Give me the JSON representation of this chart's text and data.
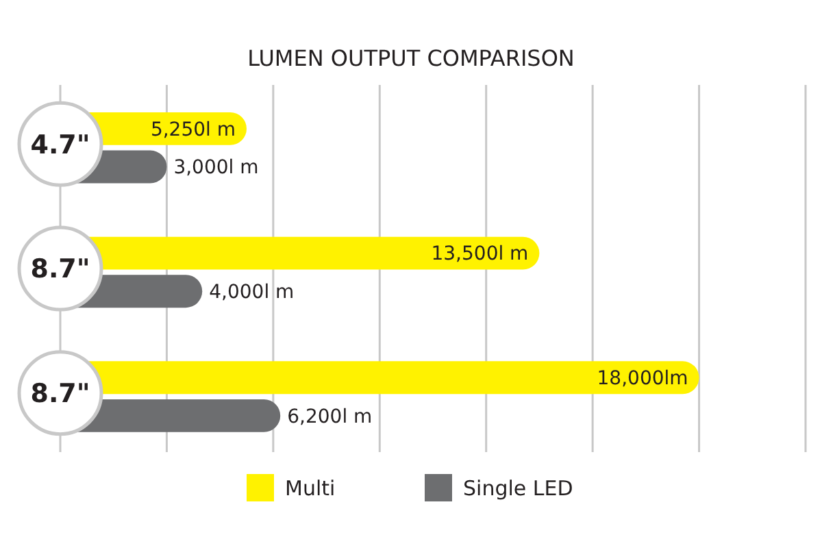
{
  "chart_data": {
    "type": "bar",
    "orientation": "horizontal",
    "title": "LUMEN OUTPUT COMPARISON",
    "categories": [
      "4.7\"",
      "8.7\"",
      "8.7\""
    ],
    "series": [
      {
        "name": "Multi",
        "color": "#fff200",
        "values": [
          5250,
          13500,
          18000
        ],
        "value_labels": [
          "5,250l m",
          "13,500l m",
          "18,000lm"
        ]
      },
      {
        "name": "Single LED",
        "color": "#6d6e70",
        "values": [
          3000,
          4000,
          6200
        ],
        "value_labels": [
          "3,000l m",
          "4,000l m",
          "6,200l m"
        ]
      }
    ],
    "xlim": [
      0,
      21000
    ],
    "xticks": [
      {
        "value": 0,
        "label": null
      },
      {
        "value": 3000,
        "label": null
      },
      {
        "value": 6000,
        "label": null
      },
      {
        "value": 9000,
        "label": null
      },
      {
        "value": 12000,
        "label": null
      },
      {
        "value": 15000,
        "label": null
      },
      {
        "value": 18000,
        "label": null
      },
      {
        "value": 21000,
        "label": null
      }
    ],
    "grid": "x",
    "tick_labels": "y",
    "legend": "bottom"
  }
}
